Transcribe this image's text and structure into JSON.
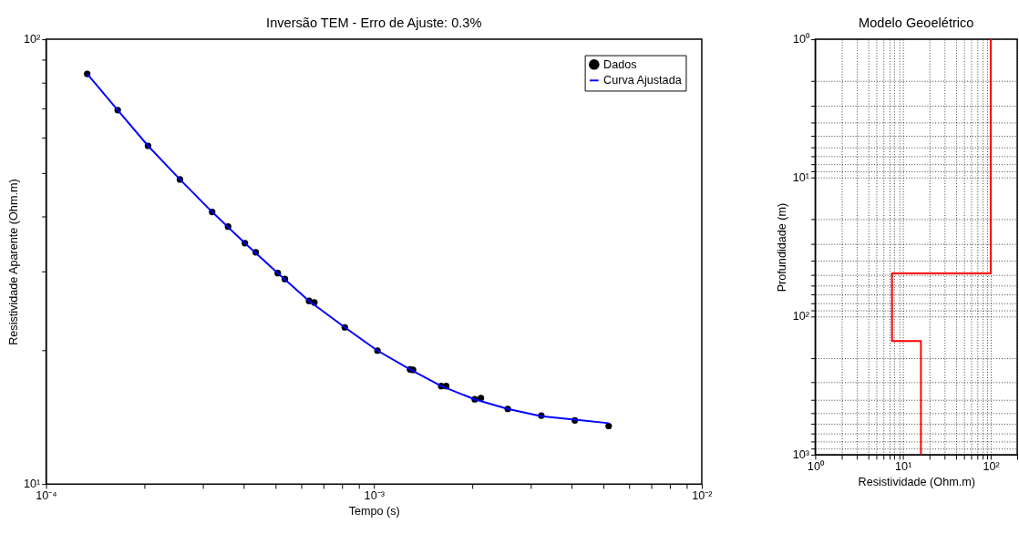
{
  "chart_data": [
    {
      "type": "scatter",
      "title": "Inversão TEM - Erro de Ajuste: 0.3%",
      "xlabel": "Tempo (s)",
      "ylabel": "Resistividade Aparente (Ohm.m)",
      "log": "xy",
      "grid": false,
      "legend": "top right",
      "xlim": [
        0.0001,
        0.01
      ],
      "ylim": [
        10,
        100
      ],
      "xticks": [
        {
          "value": 0.0001,
          "label": "10⁻⁴"
        },
        {
          "value": 0.0002,
          "label": null
        },
        {
          "value": 0.0003,
          "label": null
        },
        {
          "value": 0.0004,
          "label": null
        },
        {
          "value": 0.0005,
          "label": null
        },
        {
          "value": 0.0006,
          "label": null
        },
        {
          "value": 0.0007,
          "label": null
        },
        {
          "value": 0.0008,
          "label": null
        },
        {
          "value": 0.0009,
          "label": null
        },
        {
          "value": 0.001,
          "label": "10⁻³"
        },
        {
          "value": 0.002,
          "label": null
        },
        {
          "value": 0.003,
          "label": null
        },
        {
          "value": 0.004,
          "label": null
        },
        {
          "value": 0.005,
          "label": null
        },
        {
          "value": 0.006,
          "label": null
        },
        {
          "value": 0.007,
          "label": null
        },
        {
          "value": 0.008,
          "label": null
        },
        {
          "value": 0.009,
          "label": null
        },
        {
          "value": 0.01,
          "label": "10⁻²"
        }
      ],
      "yticks": [
        {
          "value": 10,
          "label": "10¹"
        },
        {
          "value": 20,
          "label": null
        },
        {
          "value": 30,
          "label": null
        },
        {
          "value": 40,
          "label": null
        },
        {
          "value": 50,
          "label": null
        },
        {
          "value": 60,
          "label": null
        },
        {
          "value": 70,
          "label": null
        },
        {
          "value": 80,
          "label": null
        },
        {
          "value": 90,
          "label": null
        },
        {
          "value": 100,
          "label": "10²"
        }
      ],
      "series": [
        {
          "name": "Dados",
          "marker": "circle",
          "color": "#000000",
          "x": [
            0.0001335,
            0.0001654,
            0.0002046,
            0.000256,
            0.000321,
            0.000359,
            0.000404,
            0.000436,
            0.000509,
            0.000535,
            0.000634,
            0.000658,
            0.000815,
            0.001025,
            0.001289,
            0.001316,
            0.001604,
            0.001661,
            0.00203,
            0.00212,
            0.00256,
            0.00324,
            0.0041,
            0.0052
          ],
          "values": [
            83.6,
            69.3,
            57.6,
            48.4,
            40.9,
            37.9,
            34.8,
            33.2,
            29.8,
            28.9,
            25.8,
            25.6,
            22.5,
            19.95,
            18.1,
            18.05,
            16.6,
            16.6,
            15.5,
            15.6,
            14.75,
            14.25,
            13.9,
            13.5
          ]
        },
        {
          "name": "Curva Ajustada",
          "type": "line",
          "line_style": "solid",
          "color": "#0000ff",
          "x": [
            0.0001335,
            0.0001654,
            0.0002046,
            0.000256,
            0.000321,
            0.000404,
            0.000509,
            0.000634,
            0.000815,
            0.001025,
            0.001289,
            0.001604,
            0.00203,
            0.00256,
            0.00324,
            0.0041,
            0.0052
          ],
          "values": [
            83.6,
            69.3,
            57.6,
            48.4,
            40.9,
            34.8,
            29.8,
            25.8,
            22.5,
            19.95,
            18.1,
            16.6,
            15.5,
            14.75,
            14.2,
            13.95,
            13.7
          ]
        }
      ]
    },
    {
      "type": "line",
      "title": "Modelo Geoelétrico",
      "xlabel": "Resistividade (Ohm.m)",
      "ylabel": "Profundidade (m)",
      "log": "xy",
      "grid": true,
      "xlim": [
        1,
        200
      ],
      "ylim": [
        1000,
        1
      ],
      "xticks": [
        {
          "value": 1,
          "label": "10⁰"
        },
        {
          "value": 2,
          "label": null
        },
        {
          "value": 3,
          "label": null
        },
        {
          "value": 4,
          "label": null
        },
        {
          "value": 5,
          "label": null
        },
        {
          "value": 6,
          "label": null
        },
        {
          "value": 7,
          "label": null
        },
        {
          "value": 8,
          "label": null
        },
        {
          "value": 9,
          "label": null
        },
        {
          "value": 10,
          "label": "10¹"
        },
        {
          "value": 20,
          "label": null
        },
        {
          "value": 30,
          "label": null
        },
        {
          "value": 40,
          "label": null
        },
        {
          "value": 50,
          "label": null
        },
        {
          "value": 60,
          "label": null
        },
        {
          "value": 70,
          "label": null
        },
        {
          "value": 80,
          "label": null
        },
        {
          "value": 90,
          "label": null
        },
        {
          "value": 100,
          "label": "10²"
        },
        {
          "value": 200,
          "label": null
        }
      ],
      "yticks": [
        {
          "value": 1,
          "label": "10⁰"
        },
        {
          "value": 2,
          "label": null
        },
        {
          "value": 3,
          "label": null
        },
        {
          "value": 4,
          "label": null
        },
        {
          "value": 5,
          "label": null
        },
        {
          "value": 6,
          "label": null
        },
        {
          "value": 7,
          "label": null
        },
        {
          "value": 8,
          "label": null
        },
        {
          "value": 9,
          "label": null
        },
        {
          "value": 10,
          "label": "10¹"
        },
        {
          "value": 20,
          "label": null
        },
        {
          "value": 30,
          "label": null
        },
        {
          "value": 40,
          "label": null
        },
        {
          "value": 50,
          "label": null
        },
        {
          "value": 60,
          "label": null
        },
        {
          "value": 70,
          "label": null
        },
        {
          "value": 80,
          "label": null
        },
        {
          "value": 90,
          "label": null
        },
        {
          "value": 100,
          "label": "10²"
        },
        {
          "value": 200,
          "label": null
        },
        {
          "value": 300,
          "label": null
        },
        {
          "value": 400,
          "label": null
        },
        {
          "value": 500,
          "label": null
        },
        {
          "value": 600,
          "label": null
        },
        {
          "value": 700,
          "label": null
        },
        {
          "value": 800,
          "label": null
        },
        {
          "value": 900,
          "label": null
        },
        {
          "value": 1000,
          "label": "10³"
        }
      ],
      "series": [
        {
          "line_style": "solid",
          "color": "#ff0000",
          "x": [
            100,
            100,
            7.5,
            7.5,
            16,
            16
          ],
          "values": [
            1,
            49,
            49,
            151,
            151,
            1000
          ]
        }
      ]
    }
  ]
}
